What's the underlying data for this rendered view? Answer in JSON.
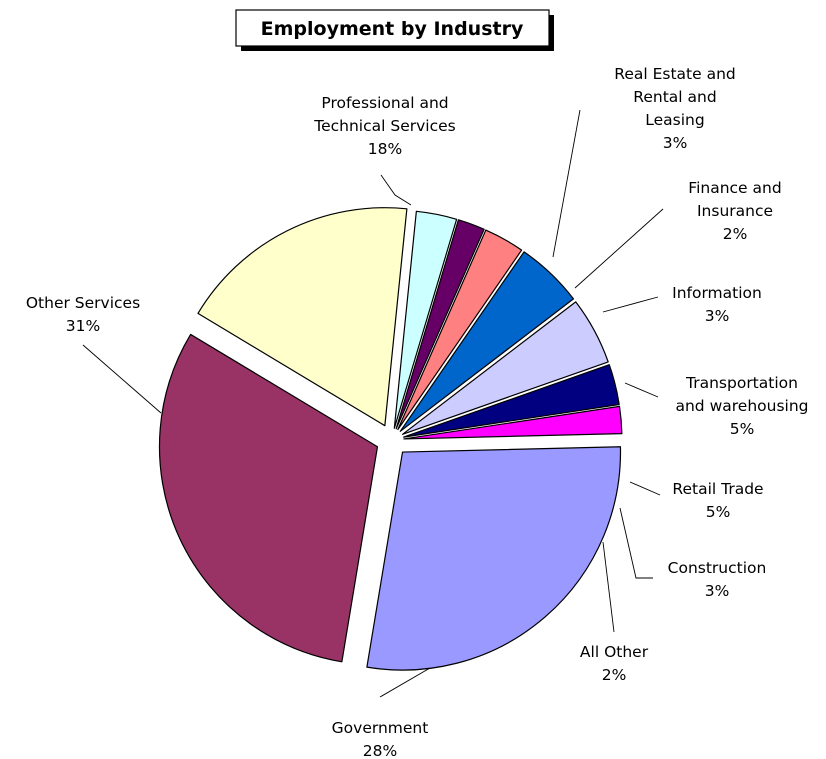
{
  "chart_data": {
    "type": "pie",
    "title": "Employment by Industry",
    "start_angle_deg": -149,
    "direction": "clockwise",
    "explode": true,
    "legend": "none",
    "slices": [
      {
        "name": "Professional and Technical Services",
        "lines": [
          "Professional and",
          "Technical Services"
        ],
        "value": 18,
        "value_label": "18%",
        "color": "#FFFFCC"
      },
      {
        "name": "Real Estate and Rental and Leasing",
        "lines": [
          "Real Estate and",
          "Rental and",
          "Leasing"
        ],
        "value": 3,
        "value_label": "3%",
        "color": "#CCFFFF"
      },
      {
        "name": "Finance and Insurance",
        "lines": [
          "Finance and",
          "Insurance"
        ],
        "value": 2,
        "value_label": "2%",
        "color": "#660066"
      },
      {
        "name": "Information",
        "lines": [
          "Information"
        ],
        "value": 3,
        "value_label": "3%",
        "color": "#FF8080"
      },
      {
        "name": "Transportation and warehousing",
        "lines": [
          "Transportation",
          "and warehousing"
        ],
        "value": 5,
        "value_label": "5%",
        "color": "#0066CC"
      },
      {
        "name": "Retail Trade",
        "lines": [
          "Retail Trade"
        ],
        "value": 5,
        "value_label": "5%",
        "color": "#CCCCFF"
      },
      {
        "name": "Construction",
        "lines": [
          "Construction"
        ],
        "value": 3,
        "value_label": "3%",
        "color": "#000080"
      },
      {
        "name": "All Other",
        "lines": [
          "All Other"
        ],
        "value": 2,
        "value_label": "2%",
        "color": "#FF00FF"
      },
      {
        "name": "Government",
        "lines": [
          "Government"
        ],
        "value": 28,
        "value_label": "28%",
        "color": "#9999FF"
      },
      {
        "name": "Other Services",
        "lines": [
          "Other Services"
        ],
        "value": 31,
        "value_label": "31%",
        "color": "#993366"
      }
    ]
  }
}
